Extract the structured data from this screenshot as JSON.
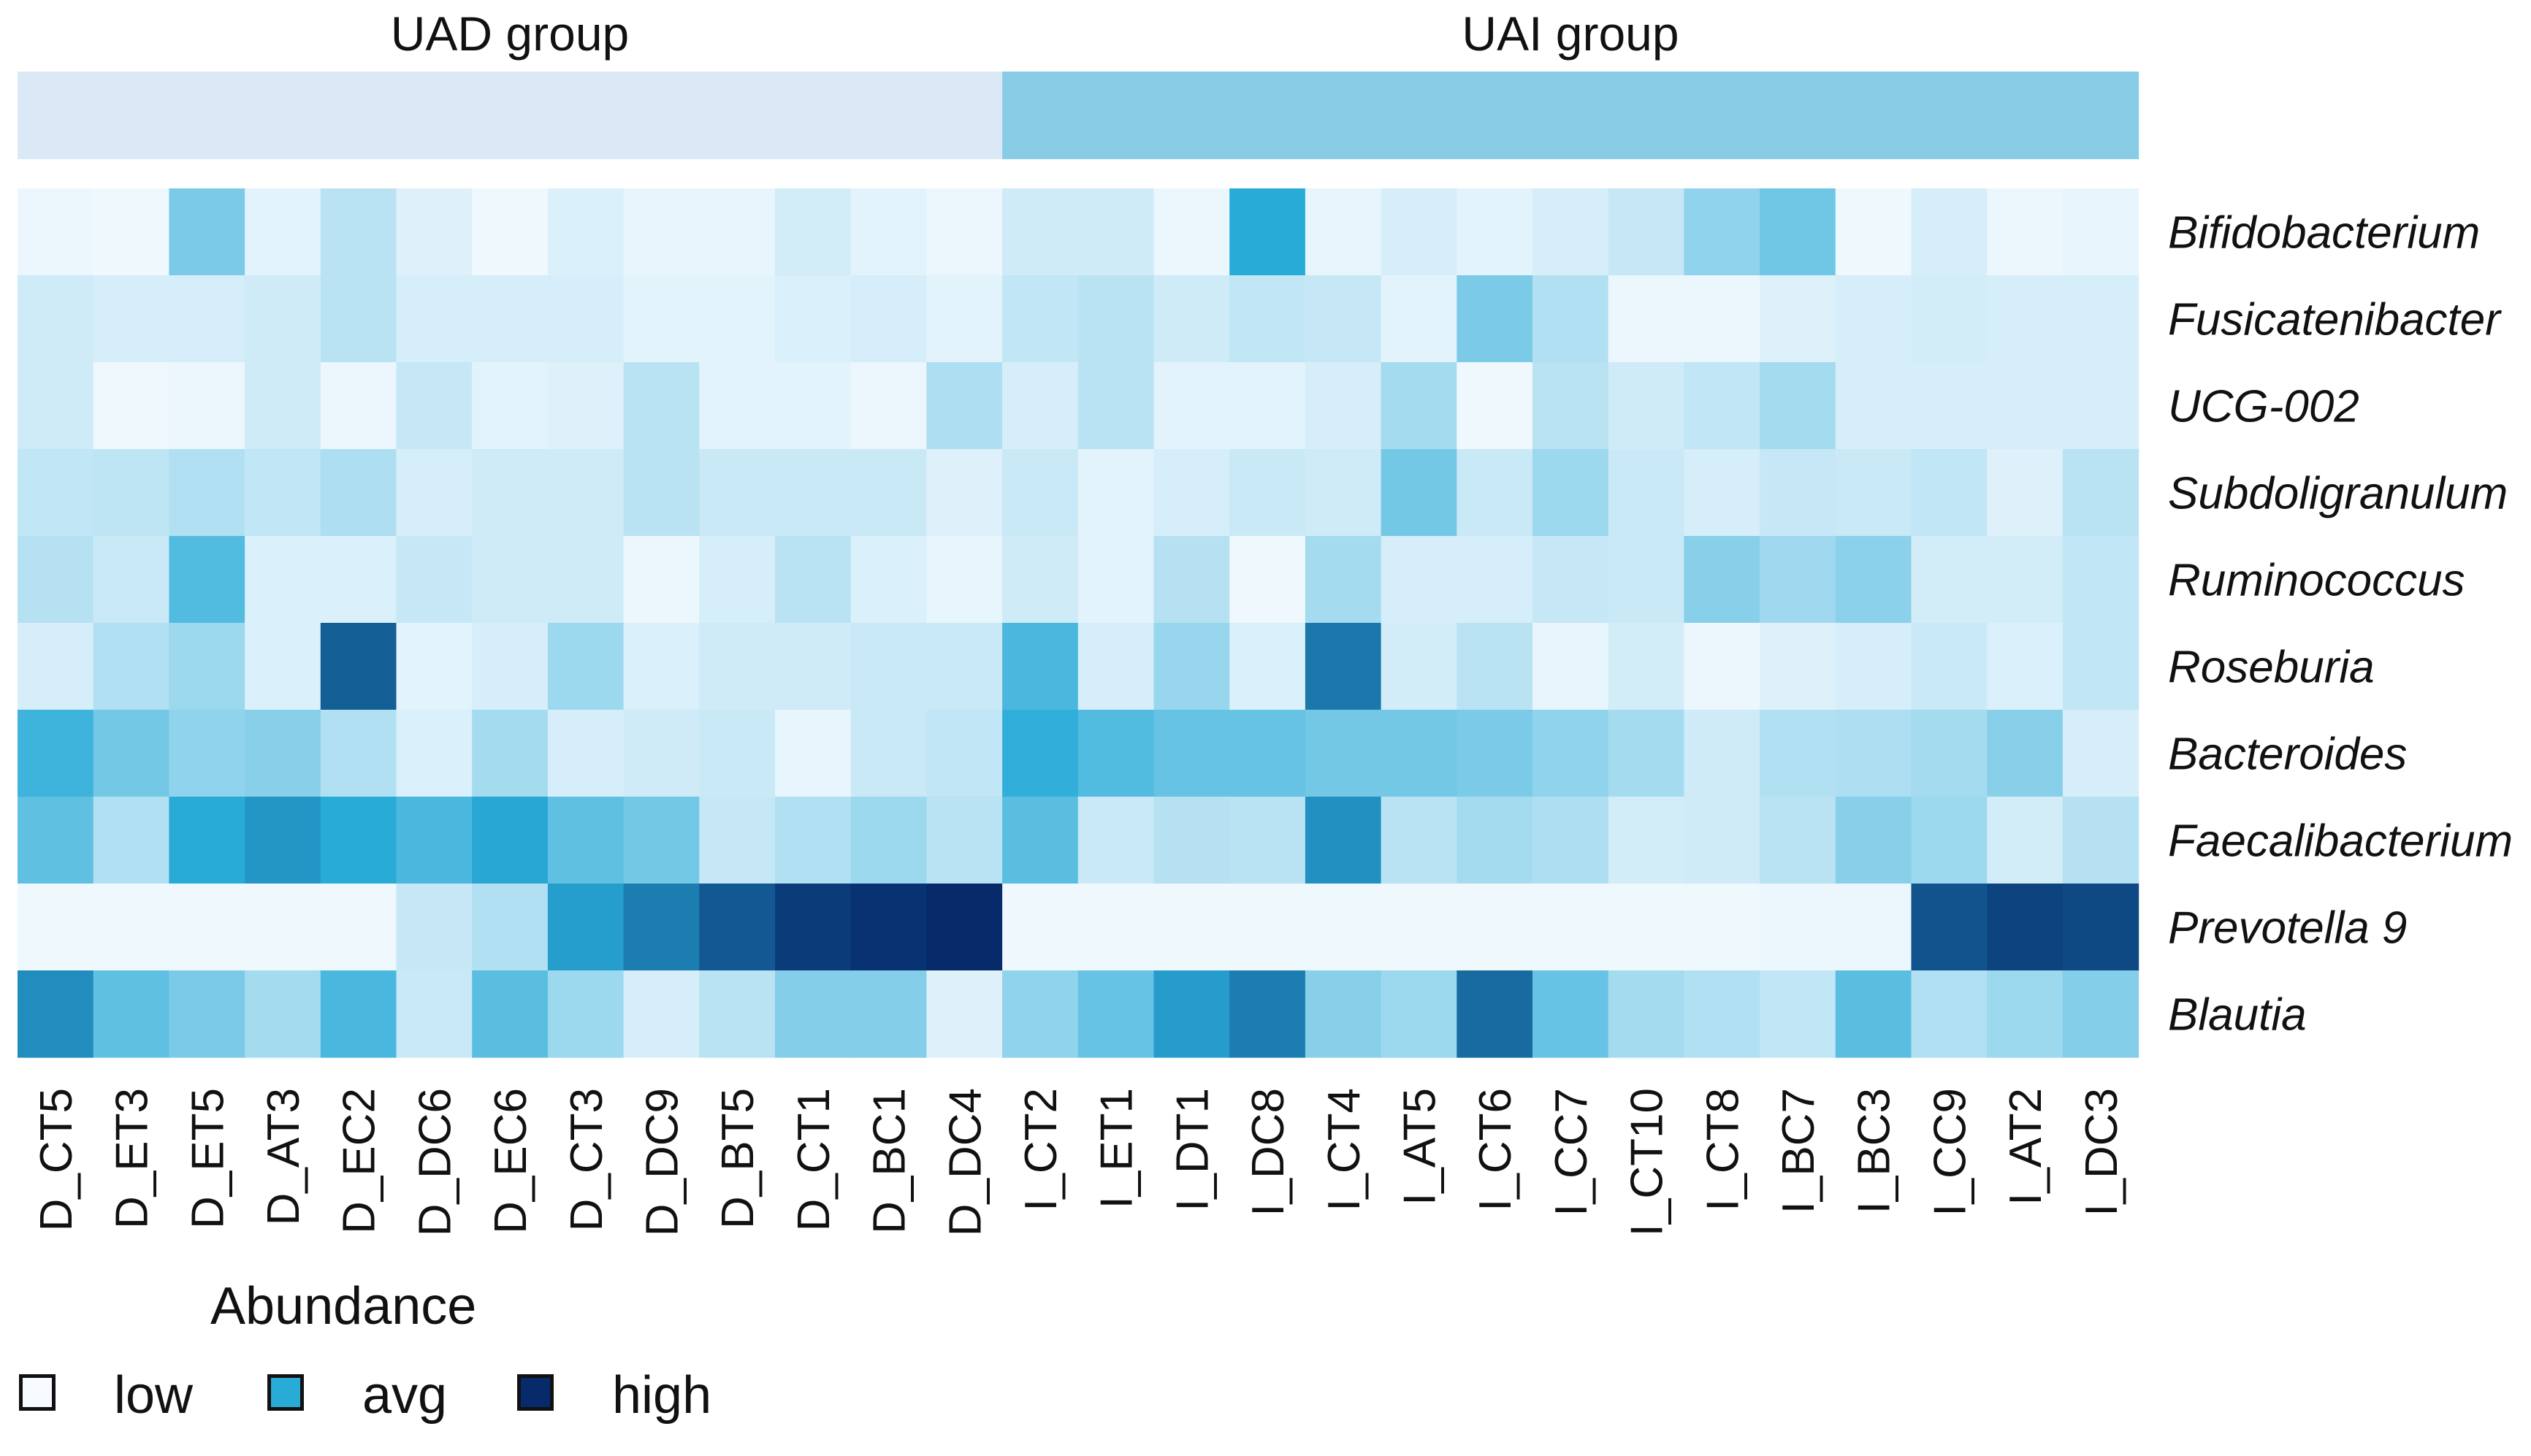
{
  "chart_data": {
    "type": "heatmap",
    "groups": [
      {
        "name": "UAD group",
        "color": "#dbe9f6",
        "start": 0,
        "count": 13
      },
      {
        "name": "UAI group",
        "color": "#89cce5",
        "start": 13,
        "count": 15
      }
    ],
    "columns": [
      "D_CT5",
      "D_ET3",
      "D_ET5",
      "D_AT3",
      "D_EC2",
      "D_DC6",
      "D_EC6",
      "D_CT3",
      "D_DC9",
      "D_BT5",
      "D_CT1",
      "D_BC1",
      "D_DC4",
      "I_CT2",
      "I_ET1",
      "I_DT1",
      "I_DC8",
      "I_CT4",
      "I_AT5",
      "I_CT6",
      "I_CC7",
      "I_CT10",
      "I_CT8",
      "I_BC7",
      "I_BC3",
      "I_CC9",
      "I_AT2",
      "I_DC3"
    ],
    "rows": [
      "Bifidobacterium",
      "Fusicatenibacter",
      "UCG-002",
      "Subdoligranulum",
      "Ruminococcus",
      "Roseburia",
      "Bacteroides",
      "Faecalibacterium",
      "Prevotella 9",
      "Blautia"
    ],
    "values": [
      [
        0.03,
        0.02,
        0.3,
        0.05,
        0.15,
        0.06,
        0.02,
        0.07,
        0.04,
        0.04,
        0.09,
        0.05,
        0.03,
        0.1,
        0.1,
        0.03,
        0.5,
        0.04,
        0.08,
        0.05,
        0.08,
        0.12,
        0.25,
        0.33,
        0.02,
        0.08,
        0.03,
        0.04
      ],
      [
        0.1,
        0.08,
        0.08,
        0.1,
        0.15,
        0.08,
        0.08,
        0.08,
        0.05,
        0.05,
        0.07,
        0.08,
        0.05,
        0.13,
        0.15,
        0.1,
        0.13,
        0.12,
        0.05,
        0.3,
        0.17,
        0.03,
        0.03,
        0.06,
        0.08,
        0.09,
        0.08,
        0.08
      ],
      [
        0.1,
        0.02,
        0.03,
        0.1,
        0.03,
        0.12,
        0.05,
        0.06,
        0.15,
        0.05,
        0.05,
        0.03,
        0.18,
        0.08,
        0.15,
        0.05,
        0.05,
        0.08,
        0.2,
        0.02,
        0.15,
        0.1,
        0.13,
        0.2,
        0.08,
        0.08,
        0.08,
        0.08
      ],
      [
        0.13,
        0.14,
        0.17,
        0.13,
        0.18,
        0.08,
        0.1,
        0.1,
        0.15,
        0.11,
        0.11,
        0.11,
        0.06,
        0.11,
        0.05,
        0.08,
        0.11,
        0.1,
        0.32,
        0.11,
        0.22,
        0.11,
        0.08,
        0.12,
        0.11,
        0.13,
        0.06,
        0.15
      ],
      [
        0.16,
        0.11,
        0.4,
        0.07,
        0.07,
        0.12,
        0.1,
        0.1,
        0.03,
        0.08,
        0.15,
        0.07,
        0.04,
        0.1,
        0.05,
        0.16,
        0.02,
        0.2,
        0.08,
        0.08,
        0.12,
        0.11,
        0.27,
        0.21,
        0.26,
        0.09,
        0.09,
        0.13
      ],
      [
        0.08,
        0.17,
        0.22,
        0.07,
        0.8,
        0.05,
        0.08,
        0.22,
        0.07,
        0.1,
        0.1,
        0.11,
        0.11,
        0.42,
        0.08,
        0.23,
        0.07,
        0.7,
        0.09,
        0.15,
        0.04,
        0.09,
        0.03,
        0.06,
        0.08,
        0.11,
        0.07,
        0.13
      ],
      [
        0.45,
        0.32,
        0.25,
        0.27,
        0.17,
        0.07,
        0.2,
        0.08,
        0.1,
        0.11,
        0.04,
        0.11,
        0.13,
        0.48,
        0.4,
        0.35,
        0.35,
        0.32,
        0.32,
        0.3,
        0.25,
        0.2,
        0.1,
        0.17,
        0.18,
        0.2,
        0.27,
        0.08
      ],
      [
        0.37,
        0.17,
        0.5,
        0.58,
        0.5,
        0.42,
        0.52,
        0.37,
        0.32,
        0.12,
        0.17,
        0.22,
        0.15,
        0.38,
        0.11,
        0.16,
        0.15,
        0.6,
        0.15,
        0.2,
        0.18,
        0.09,
        0.1,
        0.15,
        0.27,
        0.22,
        0.09,
        0.16
      ],
      [
        0.02,
        0.02,
        0.02,
        0.02,
        0.02,
        0.12,
        0.17,
        0.55,
        0.68,
        0.82,
        0.93,
        0.97,
        1.0,
        0.02,
        0.02,
        0.02,
        0.02,
        0.02,
        0.02,
        0.02,
        0.02,
        0.02,
        0.02,
        0.03,
        0.03,
        0.84,
        0.9,
        0.88
      ],
      [
        0.62,
        0.37,
        0.3,
        0.2,
        0.42,
        0.11,
        0.38,
        0.22,
        0.08,
        0.15,
        0.28,
        0.28,
        0.06,
        0.25,
        0.35,
        0.56,
        0.68,
        0.27,
        0.22,
        0.75,
        0.35,
        0.2,
        0.17,
        0.13,
        0.38,
        0.17,
        0.22,
        0.28
      ]
    ],
    "color_scale": [
      "#f7fbff",
      "#29abd8",
      "#062a6a"
    ],
    "legend": {
      "title": "Abundance",
      "items": [
        {
          "label": "low",
          "color": "#f7fbff"
        },
        {
          "label": "avg",
          "color": "#29abd8"
        },
        {
          "label": "high",
          "color": "#062a6a"
        }
      ]
    }
  }
}
